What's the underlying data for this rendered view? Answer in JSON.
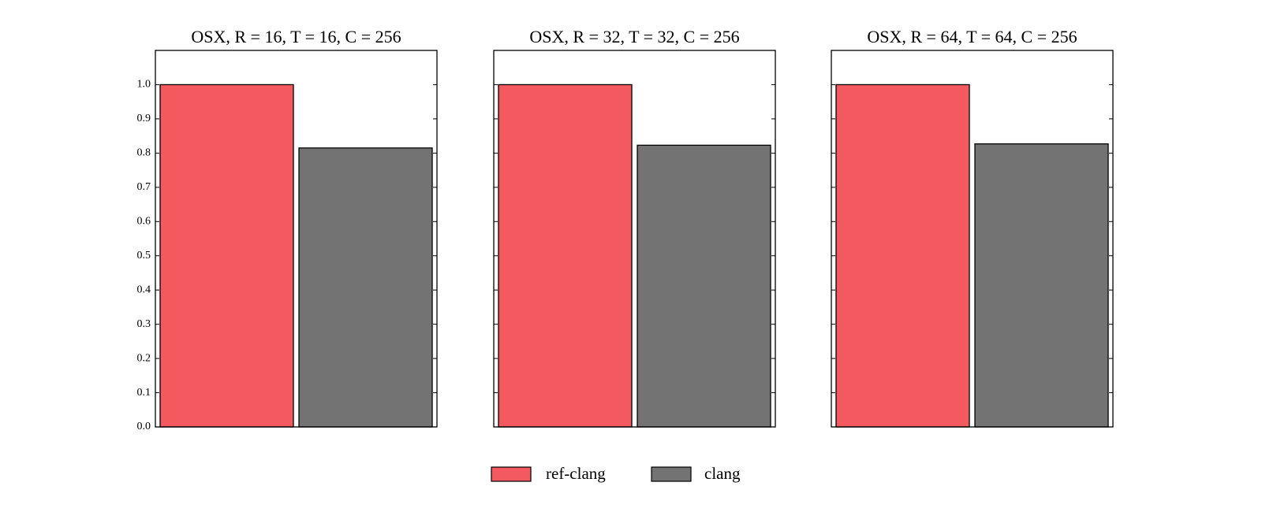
{
  "chart_data": [
    {
      "type": "bar",
      "title": "OSX, R = 16, T = 16, C = 256",
      "series": [
        {
          "name": "ref-clang",
          "color": "#f25a60",
          "values": [
            1.0
          ]
        },
        {
          "name": "clang",
          "color": "#737373",
          "values": [
            0.815
          ]
        }
      ],
      "ylim": [
        0,
        1.1
      ],
      "yticks": [
        {
          "value": 0,
          "label": "0.0"
        },
        0.1,
        0.2,
        0.3,
        0.4,
        0.5,
        0.6,
        0.7,
        0.8,
        0.9,
        {
          "value": 1,
          "label": "1.0"
        }
      ]
    },
    {
      "type": "bar",
      "title": "OSX, R = 32, T = 32, C = 256",
      "series": [
        {
          "name": "ref-clang",
          "color": "#f25a60",
          "values": [
            1.0
          ]
        },
        {
          "name": "clang",
          "color": "#737373",
          "values": [
            0.823
          ]
        }
      ],
      "ylim": [
        0,
        1.1
      ],
      "yticks": [
        0,
        0.1,
        0.2,
        0.3,
        0.4,
        0.5,
        0.6,
        0.7,
        0.8,
        0.9,
        1
      ]
    },
    {
      "type": "bar",
      "title": "OSX, R = 64, T = 64, C = 256",
      "series": [
        {
          "name": "ref-clang",
          "color": "#f25a60",
          "values": [
            1.0
          ]
        },
        {
          "name": "clang",
          "color": "#737373",
          "values": [
            0.827
          ]
        }
      ],
      "ylim": [
        0,
        1.1
      ],
      "yticks": [
        0,
        0.1,
        0.2,
        0.3,
        0.4,
        0.5,
        0.6,
        0.7,
        0.8,
        0.9,
        1
      ]
    }
  ]
}
